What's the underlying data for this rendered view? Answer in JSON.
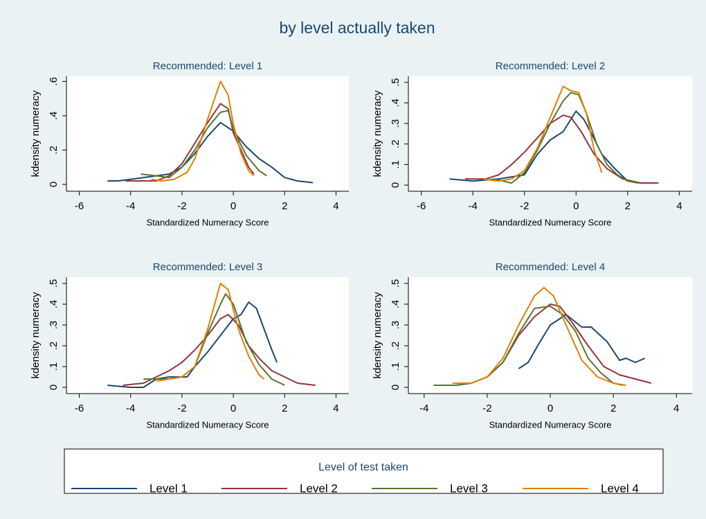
{
  "title": "by level actually taken",
  "legend": {
    "title": "Level of test taken"
  },
  "chart_data": [
    {
      "type": "line",
      "title": "Recommended: Level 1",
      "xlabel": "Standardized Numeracy Score",
      "ylabel": "kdensity numeracy",
      "xlim": [
        -6.5,
        4.5
      ],
      "ylim": [
        -0.04,
        0.63
      ],
      "xticks": [
        -6,
        -4,
        -2,
        0,
        2,
        4
      ],
      "yticks": [
        0,
        {
          "value": 0.2,
          "label": ".2"
        },
        {
          "value": 0.4,
          "label": ".4"
        },
        {
          "value": 0.6,
          "label": ".6"
        }
      ],
      "grid": false,
      "series": [
        {
          "name": "Level 1",
          "color": "#1a476f",
          "x": [
            -4.9,
            -4.5,
            -4,
            -3.5,
            -3,
            -2.5,
            -2,
            -1.5,
            -1,
            -0.5,
            0,
            0.5,
            1,
            1.5,
            2,
            2.5,
            3.1
          ],
          "values": [
            0.02,
            0.02,
            0.03,
            0.04,
            0.05,
            0.06,
            0.1,
            0.18,
            0.28,
            0.36,
            0.31,
            0.22,
            0.15,
            0.1,
            0.04,
            0.02,
            0.01
          ]
        },
        {
          "name": "Level 2",
          "color": "#90353b",
          "x": [
            -4.2,
            -3.5,
            -3,
            -2.5,
            -2,
            -1.5,
            -1,
            -0.5,
            -0.2,
            0,
            0.3,
            0.6,
            0.8
          ],
          "values": [
            0.02,
            0.02,
            0.02,
            0.05,
            0.12,
            0.24,
            0.36,
            0.47,
            0.44,
            0.3,
            0.2,
            0.1,
            0.06
          ]
        },
        {
          "name": "Level 3",
          "color": "#55752f",
          "x": [
            -3.6,
            -3,
            -2.5,
            -2,
            -1.5,
            -1,
            -0.5,
            -0.2,
            0,
            0.5,
            1,
            1.3
          ],
          "values": [
            0.06,
            0.05,
            0.04,
            0.1,
            0.2,
            0.33,
            0.42,
            0.43,
            0.32,
            0.17,
            0.08,
            0.05
          ]
        },
        {
          "name": "Level 4",
          "color": "#e37e00",
          "x": [
            -3.2,
            -2.8,
            -2.3,
            -1.8,
            -1.5,
            -1,
            -0.5,
            -0.2,
            0,
            0.3,
            0.6,
            0.8
          ],
          "values": [
            0.03,
            0.02,
            0.03,
            0.07,
            0.15,
            0.38,
            0.6,
            0.52,
            0.35,
            0.18,
            0.08,
            0.05
          ]
        }
      ]
    },
    {
      "type": "line",
      "title": "Recommended: Level 2",
      "xlabel": "Standardized Numeracy Score",
      "ylabel": "kdensity numeracy",
      "xlim": [
        -6.5,
        4.5
      ],
      "ylim": [
        -0.03,
        0.53
      ],
      "xticks": [
        -6,
        -4,
        -2,
        0,
        2,
        4
      ],
      "yticks": [
        0,
        {
          "value": 0.1,
          "label": ".1"
        },
        {
          "value": 0.2,
          "label": ".2"
        },
        {
          "value": 0.3,
          "label": ".3"
        },
        {
          "value": 0.4,
          "label": ".4"
        },
        {
          "value": 0.5,
          "label": ".5"
        }
      ],
      "grid": false,
      "series": [
        {
          "name": "Level 1",
          "color": "#1a476f",
          "x": [
            -4.9,
            -4,
            -3,
            -2,
            -1.5,
            -1,
            -0.5,
            0,
            0.3,
            0.6,
            1,
            1.5,
            2,
            2.5,
            3.1
          ],
          "values": [
            0.03,
            0.02,
            0.03,
            0.05,
            0.15,
            0.22,
            0.26,
            0.36,
            0.32,
            0.25,
            0.15,
            0.08,
            0.02,
            0.01,
            0.01
          ]
        },
        {
          "name": "Level 2",
          "color": "#90353b",
          "x": [
            -4.3,
            -3.5,
            -3,
            -2.5,
            -2,
            -1.5,
            -1,
            -0.5,
            -0.2,
            0.2,
            0.7,
            1.2,
            1.8,
            2.5,
            3.2
          ],
          "values": [
            0.03,
            0.03,
            0.05,
            0.1,
            0.16,
            0.23,
            0.3,
            0.34,
            0.33,
            0.26,
            0.15,
            0.08,
            0.03,
            0.01,
            0.01
          ]
        },
        {
          "name": "Level 3",
          "color": "#55752f",
          "x": [
            -3.2,
            -2.5,
            -2,
            -1.5,
            -1,
            -0.5,
            -0.2,
            0.1,
            0.4,
            0.8,
            1.2,
            1.6,
            2,
            2.4
          ],
          "values": [
            0.03,
            0.01,
            0.06,
            0.17,
            0.3,
            0.41,
            0.45,
            0.44,
            0.35,
            0.2,
            0.1,
            0.05,
            0.02,
            0.01
          ]
        },
        {
          "name": "Level 4",
          "color": "#e37e00",
          "x": [
            -3.6,
            -3,
            -2.5,
            -2,
            -1.5,
            -1,
            -0.5,
            -0.2,
            0.1,
            0.4,
            0.7,
            1
          ],
          "values": [
            0.03,
            0.02,
            0.03,
            0.07,
            0.18,
            0.33,
            0.48,
            0.46,
            0.45,
            0.35,
            0.17,
            0.06
          ]
        }
      ]
    },
    {
      "type": "line",
      "title": "Recommended: Level 3",
      "xlabel": "Standardized Numeracy Score",
      "ylabel": "kdensity numeracy",
      "xlim": [
        -6.5,
        4.5
      ],
      "ylim": [
        -0.03,
        0.53
      ],
      "xticks": [
        -6,
        -4,
        -2,
        0,
        2,
        4
      ],
      "yticks": [
        0,
        {
          "value": 0.1,
          "label": ".1"
        },
        {
          "value": 0.2,
          "label": ".2"
        },
        {
          "value": 0.3,
          "label": ".3"
        },
        {
          "value": 0.4,
          "label": ".4"
        },
        {
          "value": 0.5,
          "label": ".5"
        }
      ],
      "grid": false,
      "series": [
        {
          "name": "Level 1",
          "color": "#1a476f",
          "x": [
            -4.9,
            -4,
            -3.5,
            -3,
            -2.5,
            -1.8,
            -1.5,
            -1,
            -0.5,
            0,
            0.3,
            0.6,
            0.9,
            1.2,
            1.5,
            1.7
          ],
          "values": [
            0.01,
            0,
            0,
            0.04,
            0.05,
            0.05,
            0.1,
            0.17,
            0.25,
            0.33,
            0.35,
            0.41,
            0.38,
            0.28,
            0.18,
            0.12
          ]
        },
        {
          "name": "Level 2",
          "color": "#90353b",
          "x": [
            -4.3,
            -3.5,
            -3,
            -2.5,
            -2,
            -1.5,
            -1,
            -0.5,
            -0.2,
            0.2,
            0.6,
            1,
            1.5,
            2,
            2.5,
            3.2
          ],
          "values": [
            0.01,
            0.02,
            0.05,
            0.08,
            0.12,
            0.18,
            0.25,
            0.33,
            0.35,
            0.3,
            0.2,
            0.14,
            0.08,
            0.05,
            0.02,
            0.01
          ]
        },
        {
          "name": "Level 3",
          "color": "#55752f",
          "x": [
            -3.5,
            -3,
            -2.5,
            -2,
            -1.5,
            -1,
            -0.5,
            -0.3,
            0,
            0.5,
            1,
            1.5,
            2
          ],
          "values": [
            0.04,
            0.04,
            0.04,
            0.05,
            0.1,
            0.26,
            0.4,
            0.45,
            0.4,
            0.22,
            0.11,
            0.04,
            0.01
          ]
        },
        {
          "name": "Level 4",
          "color": "#e37e00",
          "x": [
            -3,
            -2.5,
            -2,
            -1.5,
            -1,
            -0.5,
            -0.2,
            0.2,
            0.6,
            1,
            1.2
          ],
          "values": [
            0.03,
            0.04,
            0.05,
            0.1,
            0.28,
            0.5,
            0.47,
            0.28,
            0.15,
            0.06,
            0.04
          ]
        }
      ]
    },
    {
      "type": "line",
      "title": "Recommended: Level 4",
      "xlabel": "Standardized Numeracy Score",
      "ylabel": "kdensity numeracy",
      "xlim": [
        -4.5,
        4.5
      ],
      "ylim": [
        -0.03,
        0.53
      ],
      "xticks": [
        -4,
        -2,
        0,
        2,
        4
      ],
      "yticks": [
        0,
        {
          "value": 0.1,
          "label": ".1"
        },
        {
          "value": 0.2,
          "label": ".2"
        },
        {
          "value": 0.3,
          "label": ".3"
        },
        {
          "value": 0.4,
          "label": ".4"
        },
        {
          "value": 0.5,
          "label": ".5"
        }
      ],
      "grid": false,
      "series": [
        {
          "name": "Level 1",
          "color": "#1a476f",
          "x": [
            -1,
            -0.7,
            -0.4,
            0,
            0.5,
            1,
            1.3,
            1.8,
            2.2,
            2.4,
            2.7,
            3
          ],
          "values": [
            0.09,
            0.12,
            0.2,
            0.3,
            0.35,
            0.29,
            0.29,
            0.22,
            0.13,
            0.14,
            0.12,
            0.14
          ]
        },
        {
          "name": "Level 2",
          "color": "#90353b",
          "x": [
            -3,
            -2.5,
            -2,
            -1.5,
            -1,
            -0.5,
            0,
            0.3,
            0.7,
            1.2,
            1.7,
            2.2,
            2.7,
            3.2
          ],
          "values": [
            0.01,
            0.02,
            0.05,
            0.12,
            0.25,
            0.34,
            0.4,
            0.39,
            0.31,
            0.2,
            0.1,
            0.06,
            0.04,
            0.02
          ]
        },
        {
          "name": "Level 3",
          "color": "#55752f",
          "x": [
            -3.7,
            -3,
            -2.5,
            -2,
            -1.5,
            -1,
            -0.5,
            0,
            0.4,
            0.8,
            1.2,
            1.6,
            2,
            2.3
          ],
          "values": [
            0.01,
            0.01,
            0.02,
            0.05,
            0.12,
            0.26,
            0.38,
            0.39,
            0.35,
            0.27,
            0.14,
            0.07,
            0.02,
            0.01
          ]
        },
        {
          "name": "Level 4",
          "color": "#e37e00",
          "x": [
            -3.1,
            -2.5,
            -2,
            -1.5,
            -1,
            -0.5,
            -0.2,
            0.1,
            0.5,
            1,
            1.5,
            2,
            2.4
          ],
          "values": [
            0.02,
            0.02,
            0.05,
            0.14,
            0.3,
            0.44,
            0.48,
            0.44,
            0.3,
            0.13,
            0.05,
            0.02,
            0.01
          ]
        }
      ]
    }
  ]
}
